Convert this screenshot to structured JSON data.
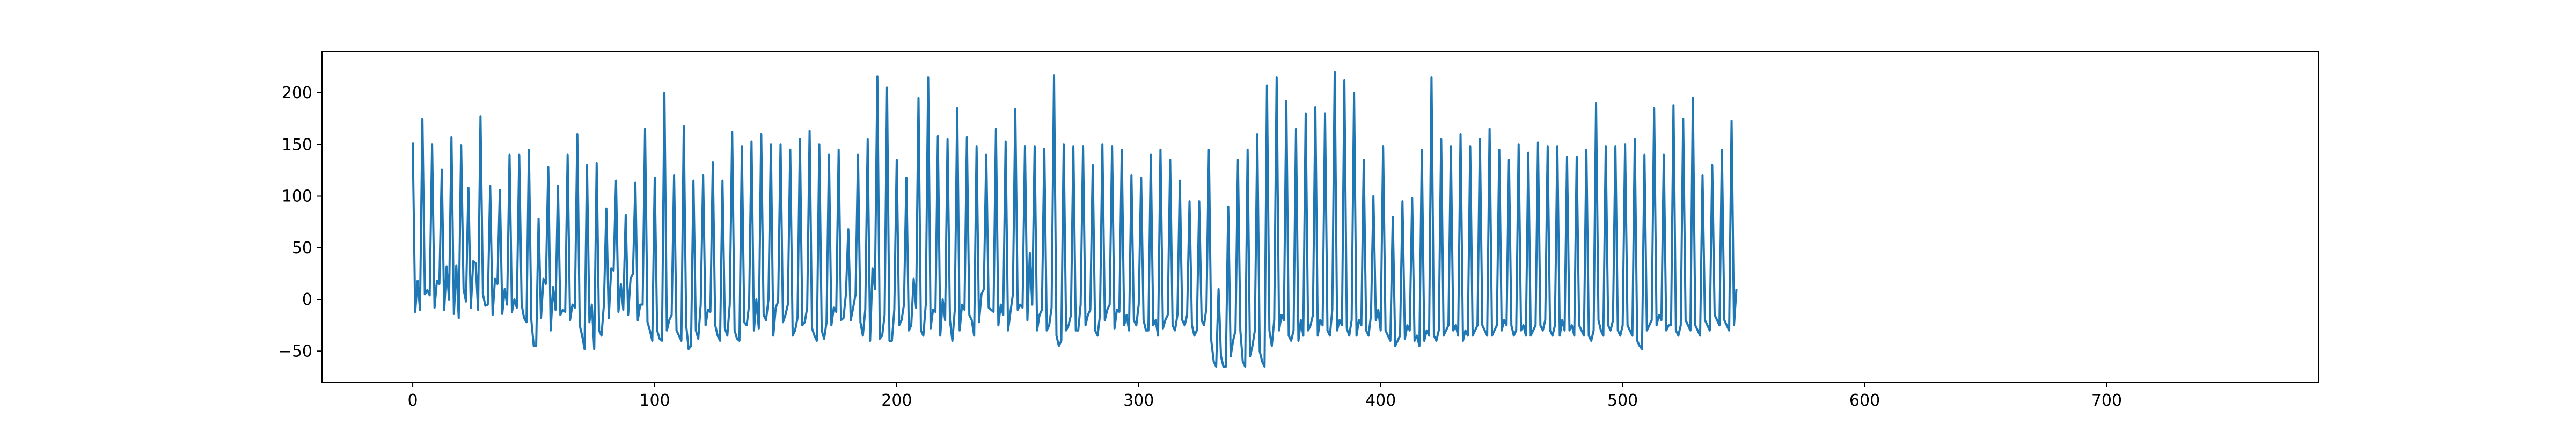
{
  "chart_data": {
    "type": "line",
    "title": "",
    "xlabel": "",
    "ylabel": "",
    "xlim": [
      -37.5,
      787.5
    ],
    "ylim": [
      -80,
      240
    ],
    "xticks": [
      0,
      100,
      200,
      300,
      400,
      500,
      600,
      700
    ],
    "yticks": [
      -50,
      0,
      50,
      100,
      150,
      200
    ],
    "grid": false,
    "legend": "none",
    "colors": {
      "line": "#1f77b4",
      "axes": "#000000",
      "background": "#ffffff"
    },
    "series": [
      {
        "x_start": 0,
        "x_step": 1,
        "values": [
          152,
          -12,
          18,
          -10,
          175,
          5,
          9,
          4,
          150,
          -8,
          18,
          15,
          126,
          -10,
          32,
          0,
          157,
          -14,
          33,
          -18,
          149,
          10,
          -2,
          108,
          -8,
          37,
          35,
          -10,
          177,
          5,
          -6,
          -5,
          110,
          -15,
          20,
          15,
          106,
          -14,
          10,
          -5,
          140,
          -12,
          0,
          -8,
          140,
          -5,
          -18,
          -22,
          145,
          -20,
          -45,
          -45,
          78,
          -18,
          20,
          15,
          128,
          -30,
          12,
          -10,
          110,
          -15,
          -10,
          -12,
          140,
          -20,
          -5,
          -8,
          160,
          -25,
          -35,
          -48,
          130,
          -22,
          -5,
          -48,
          132,
          -30,
          -35,
          -5,
          88,
          -18,
          30,
          28,
          115,
          -12,
          15,
          -10,
          82,
          -15,
          20,
          25,
          113,
          -20,
          -5,
          -5,
          165,
          -22,
          -30,
          -40,
          118,
          -30,
          -38,
          -40,
          200,
          -30,
          -20,
          -15,
          120,
          -30,
          -35,
          -40,
          168,
          -25,
          -48,
          -45,
          115,
          -30,
          -38,
          -5,
          120,
          -25,
          -10,
          -12,
          133,
          -25,
          -35,
          -40,
          115,
          -28,
          -35,
          -5,
          162,
          -30,
          -38,
          -40,
          148,
          -22,
          -25,
          -5,
          153,
          -30,
          0,
          -28,
          160,
          -15,
          -20,
          0,
          150,
          -35,
          -8,
          -2,
          150,
          -22,
          -15,
          -5,
          145,
          -35,
          -30,
          -18,
          155,
          -25,
          -22,
          -8,
          163,
          -28,
          -35,
          -40,
          150,
          -30,
          -38,
          -22,
          140,
          -25,
          -8,
          -12,
          145,
          -20,
          -18,
          5,
          68,
          -20,
          -8,
          5,
          140,
          -22,
          -35,
          -10,
          155,
          -40,
          30,
          10,
          216,
          -38,
          -35,
          -15,
          205,
          -40,
          -40,
          -10,
          135,
          -25,
          -20,
          -5,
          118,
          -30,
          -25,
          20,
          -8,
          195,
          -30,
          -35,
          -5,
          215,
          -28,
          -10,
          -12,
          158,
          -35,
          0,
          -20,
          155,
          -20,
          -40,
          -10,
          185,
          -30,
          -5,
          -10,
          157,
          -15,
          -20,
          -35,
          148,
          -22,
          5,
          10,
          140,
          -8,
          -10,
          -12,
          165,
          -25,
          -5,
          -15,
          153,
          -30,
          -12,
          5,
          184,
          -10,
          -5,
          -8,
          148,
          -20,
          45,
          -5,
          148,
          -30,
          -15,
          -10,
          146,
          -30,
          -25,
          -8,
          217,
          -35,
          -45,
          -40,
          150,
          -30,
          -25,
          -15,
          148,
          -30,
          -30,
          -5,
          148,
          -25,
          -15,
          -10,
          130,
          -30,
          -35,
          -15,
          150,
          -20,
          -10,
          -5,
          148,
          -28,
          -10,
          -12,
          145,
          -25,
          -15,
          -30,
          120,
          -20,
          -25,
          -5,
          118,
          -20,
          -30,
          -30,
          140,
          -25,
          -20,
          -35,
          145,
          -28,
          -20,
          -15,
          135,
          -25,
          -30,
          -15,
          115,
          -20,
          -25,
          -15,
          95,
          -25,
          -35,
          -30,
          95,
          -20,
          -25,
          -8,
          145,
          -40,
          -60,
          -65,
          10,
          -55,
          -65,
          -65,
          90,
          -55,
          -40,
          -30,
          135,
          -30,
          -60,
          -65,
          145,
          -55,
          -45,
          -30,
          160,
          -50,
          -60,
          -65,
          207,
          -30,
          -45,
          -20,
          215,
          -30,
          -15,
          -20,
          192,
          -35,
          -40,
          -30,
          165,
          -40,
          -20,
          -35,
          180,
          -30,
          -25,
          -15,
          186,
          -35,
          -20,
          -25,
          180,
          -30,
          -35,
          -10,
          220,
          -30,
          -20,
          -25,
          212,
          -28,
          -35,
          -20,
          200,
          -35,
          -20,
          -25,
          135,
          -30,
          -35,
          -15,
          100,
          -20,
          -10,
          -30,
          148,
          -30,
          -35,
          -40,
          80,
          -45,
          -40,
          -35,
          95,
          -38,
          -25,
          -30,
          98,
          -40,
          -35,
          -45,
          145,
          -40,
          -30,
          -35,
          215,
          -35,
          -40,
          -30,
          155,
          -35,
          -30,
          -25,
          148,
          -30,
          -25,
          -35,
          160,
          -40,
          -30,
          -35,
          148,
          -35,
          -30,
          -25,
          155,
          -25,
          -30,
          -35,
          165,
          -35,
          -30,
          -25,
          145,
          -30,
          -20,
          -25,
          135,
          -25,
          -35,
          -30,
          150,
          -30,
          -25,
          -35,
          142,
          -35,
          -30,
          -25,
          152,
          -25,
          -30,
          -20,
          148,
          -30,
          -35,
          -25,
          148,
          -35,
          -20,
          -30,
          138,
          -30,
          -25,
          -35,
          138,
          -25,
          -30,
          -35,
          145,
          -35,
          -40,
          -30,
          190,
          -20,
          -30,
          -35,
          148,
          -25,
          -30,
          -20,
          148,
          -30,
          -35,
          -25,
          150,
          -25,
          -30,
          -35,
          155,
          -40,
          -45,
          -48,
          140,
          -30,
          -25,
          -20,
          185,
          -25,
          -15,
          -20,
          140,
          -30,
          -25,
          -25,
          188,
          -30,
          -35,
          -25,
          175,
          -20,
          -25,
          -30,
          195,
          -25,
          -30,
          -35,
          120,
          -20,
          -25,
          -30,
          130,
          -15,
          -20,
          -25,
          145,
          -20,
          -25,
          -30,
          173,
          -25,
          10
        ]
      }
    ]
  }
}
